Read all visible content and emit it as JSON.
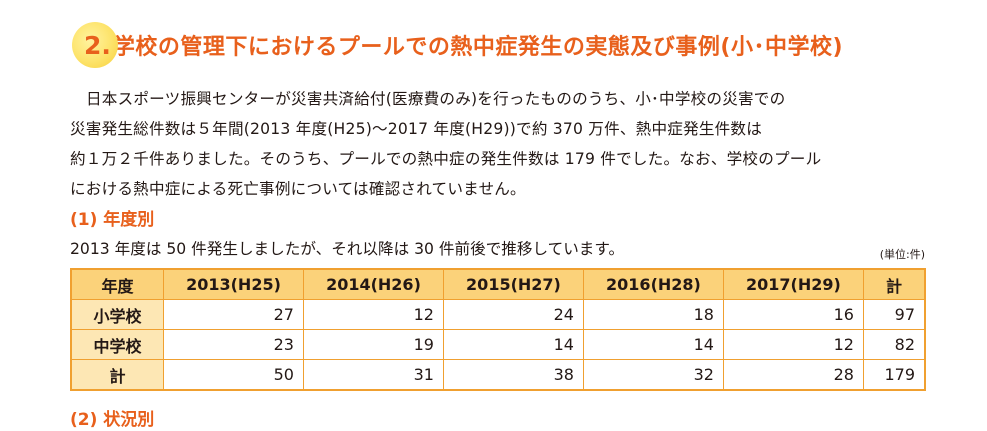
{
  "heading": {
    "number": "2.",
    "title": "学校の管理下におけるプールでの熱中症発生の実態及び事例(小･中学校)"
  },
  "paragraph": [
    "日本スポーツ振興センターが災害共済給付(医療費のみ)を行ったもののうち、小･中学校の災害での",
    "災害発生総件数は５年間(2013 年度(H25)～2017 年度(H29))で約 370 万件、熱中症発生件数は",
    "約１万２千件ありました。そのうち、プールでの熱中症の発生件数は 179 件でした。なお、学校のプール",
    "における熱中症による死亡事例については確認されていません。"
  ],
  "section1": {
    "title": "(1) 年度別",
    "note": "2013 年度は 50 件発生しましたが、それ以降は 30 件前後で推移しています。",
    "unit": "(単位:件)"
  },
  "table": {
    "headers": [
      "年度",
      "2013(H25)",
      "2014(H26)",
      "2015(H27)",
      "2016(H28)",
      "2017(H29)",
      "計"
    ],
    "rows": [
      {
        "label": "小学校",
        "values": [
          "27",
          "12",
          "24",
          "18",
          "16",
          "97"
        ]
      },
      {
        "label": "中学校",
        "values": [
          "23",
          "19",
          "14",
          "14",
          "12",
          "82"
        ]
      },
      {
        "label": "計",
        "values": [
          "50",
          "31",
          "38",
          "32",
          "28",
          "179"
        ]
      }
    ]
  },
  "section2": {
    "title": "(2) 状況別"
  },
  "colors": {
    "accent": "#e8601c",
    "table_header": "#fbd27a",
    "table_border": "#f0a030",
    "badge": "#fde36a"
  }
}
